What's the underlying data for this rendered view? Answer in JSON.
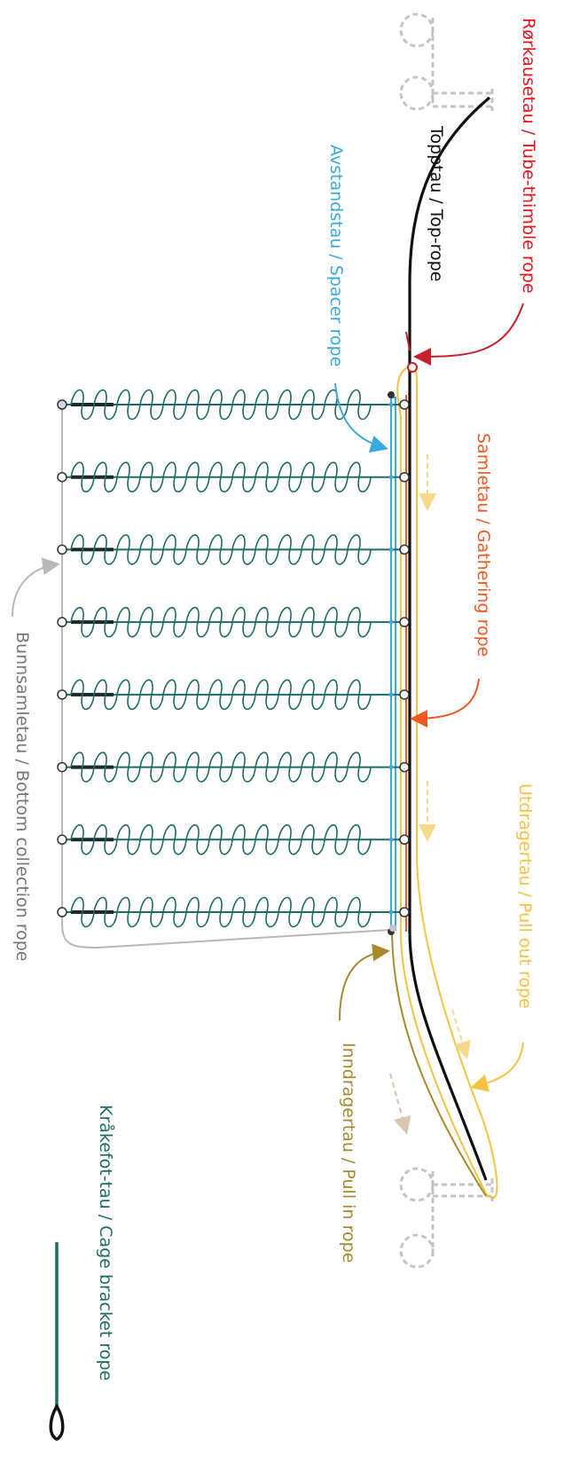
{
  "labels": {
    "tube_thimble": "Rørkausetau / Tube-thimble rope",
    "top_rope": "Topptau / Top-rope",
    "spacer_rope": "Avstandstau / Spacer rope",
    "gathering_rope": "Samletau  / Gathering rope",
    "pull_out_rope": "Utdragertau / Pull out rope",
    "pull_in_rope": "Inndragertau / Pull in rope",
    "bottom_collection_rope": "Bunnsamletau / Bottom collection rope",
    "cage_bracket_rope": "Kråkefot-tau / Cage bracket rope"
  },
  "colors": {
    "tube_thimble": "#e8141c",
    "top_rope": "#111111",
    "spacer_rope": "#3aa9e0",
    "gathering_rope": "#ef5a24",
    "pull_out_rope": "#f5c242",
    "pull_in_rope": "#a58a2e",
    "bottom_collection_rope": "#b8b8b8",
    "cage_bracket_rope": "#1f6b66",
    "anchor": "#c4c4c4"
  },
  "cage_count": 8
}
